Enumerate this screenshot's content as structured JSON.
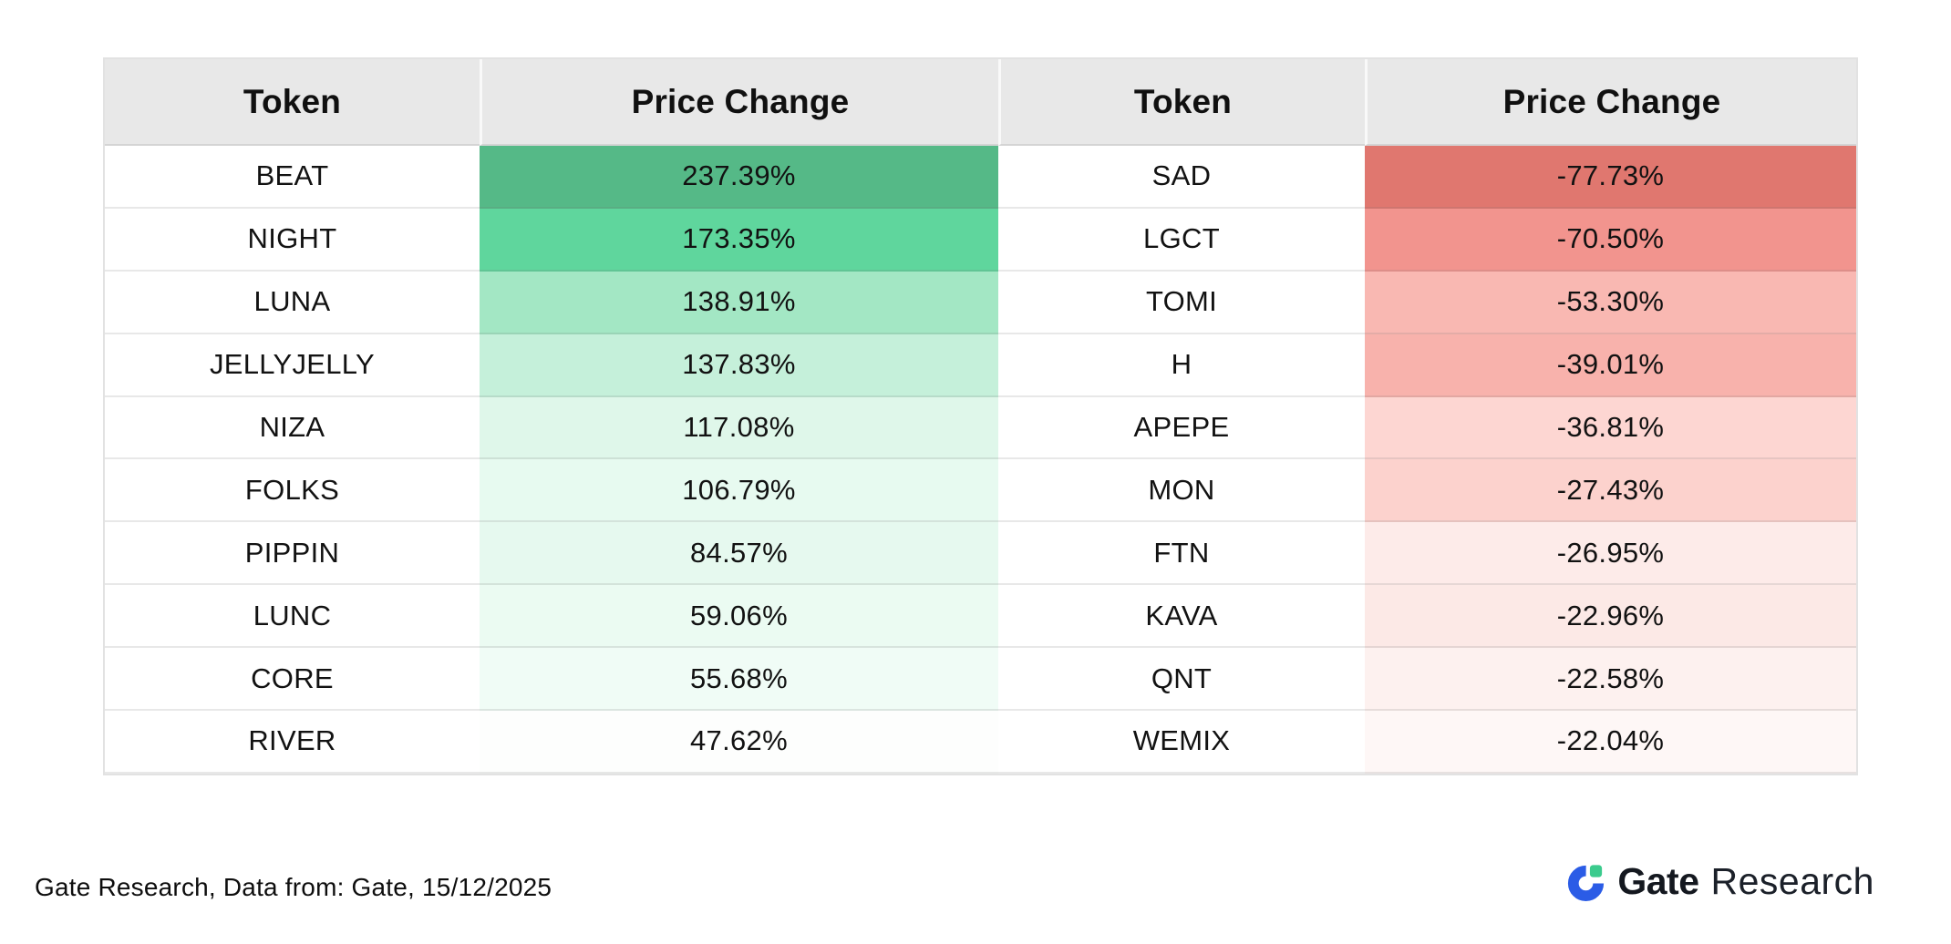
{
  "table": {
    "headers": [
      "Token",
      "Price Change",
      "Token",
      "Price Change"
    ],
    "header_bg": "#e8e8e8",
    "token_cell_bg": "#ffffff",
    "rows": [
      {
        "token_left": "BEAT",
        "change_left": "237.39%",
        "left_bg": "#55b987",
        "token_right": "SAD",
        "change_right": "-77.73%",
        "right_bg": "#e0776f"
      },
      {
        "token_left": "NIGHT",
        "change_left": "173.35%",
        "left_bg": "#5fd69d",
        "token_right": "LGCT",
        "change_right": "-70.50%",
        "right_bg": "#f2948e"
      },
      {
        "token_left": "LUNA",
        "change_left": "138.91%",
        "left_bg": "#a3e7c4",
        "token_right": "TOMI",
        "change_right": "-53.30%",
        "right_bg": "#f9b8b2"
      },
      {
        "token_left": "JELLYJELLY",
        "change_left": "137.83%",
        "left_bg": "#c5f0da",
        "token_right": "H",
        "change_right": "-39.01%",
        "right_bg": "#f8b2ac"
      },
      {
        "token_left": "NIZA",
        "change_left": "117.08%",
        "left_bg": "#dff7ea",
        "token_right": "APEPE",
        "change_right": "-36.81%",
        "right_bg": "#fdd6d2"
      },
      {
        "token_left": "FOLKS",
        "change_left": "106.79%",
        "left_bg": "#e7faf0",
        "token_right": "MON",
        "change_right": "-27.43%",
        "right_bg": "#fcd2cd"
      },
      {
        "token_left": "PIPPIN",
        "change_left": "84.57%",
        "left_bg": "#e6f9ef",
        "token_right": "FTN",
        "change_right": "-26.95%",
        "right_bg": "#fdebe9"
      },
      {
        "token_left": "LUNC",
        "change_left": "59.06%",
        "left_bg": "#ebfbf2",
        "token_right": "KAVA",
        "change_right": "-22.96%",
        "right_bg": "#fce9e6"
      },
      {
        "token_left": "CORE",
        "change_left": "55.68%",
        "left_bg": "#f0fcf6",
        "token_right": "QNT",
        "change_right": "-22.58%",
        "right_bg": "#fdf1ef"
      },
      {
        "token_left": "RIVER",
        "change_left": "47.62%",
        "left_bg": "#fdfefd",
        "token_right": "WEMIX",
        "change_right": "-22.04%",
        "right_bg": "#fef7f6"
      }
    ]
  },
  "footer": {
    "source_note": "Gate Research, Data from: Gate, 15/12/2025"
  },
  "logo": {
    "brand": "Gate",
    "suffix": "Research",
    "icon_blue": "#2b5ce6",
    "icon_green": "#3bcb8d",
    "text_color": "#14181f"
  },
  "chart_data": {
    "type": "table",
    "columns": [
      "Token",
      "Price Change",
      "Token",
      "Price Change"
    ],
    "gainers": [
      {
        "token": "BEAT",
        "price_change_pct": 237.39
      },
      {
        "token": "NIGHT",
        "price_change_pct": 173.35
      },
      {
        "token": "LUNA",
        "price_change_pct": 138.91
      },
      {
        "token": "JELLYJELLY",
        "price_change_pct": 137.83
      },
      {
        "token": "NIZA",
        "price_change_pct": 117.08
      },
      {
        "token": "FOLKS",
        "price_change_pct": 106.79
      },
      {
        "token": "PIPPIN",
        "price_change_pct": 84.57
      },
      {
        "token": "LUNC",
        "price_change_pct": 59.06
      },
      {
        "token": "CORE",
        "price_change_pct": 55.68
      },
      {
        "token": "RIVER",
        "price_change_pct": 47.62
      }
    ],
    "losers": [
      {
        "token": "SAD",
        "price_change_pct": -77.73
      },
      {
        "token": "LGCT",
        "price_change_pct": -70.5
      },
      {
        "token": "TOMI",
        "price_change_pct": -53.3
      },
      {
        "token": "H",
        "price_change_pct": -39.01
      },
      {
        "token": "APEPE",
        "price_change_pct": -36.81
      },
      {
        "token": "MON",
        "price_change_pct": -27.43
      },
      {
        "token": "FTN",
        "price_change_pct": -26.95
      },
      {
        "token": "KAVA",
        "price_change_pct": -22.96
      },
      {
        "token": "QNT",
        "price_change_pct": -22.58
      },
      {
        "token": "WEMIX",
        "price_change_pct": -22.04
      }
    ],
    "legend_position": "none",
    "grid": true
  }
}
